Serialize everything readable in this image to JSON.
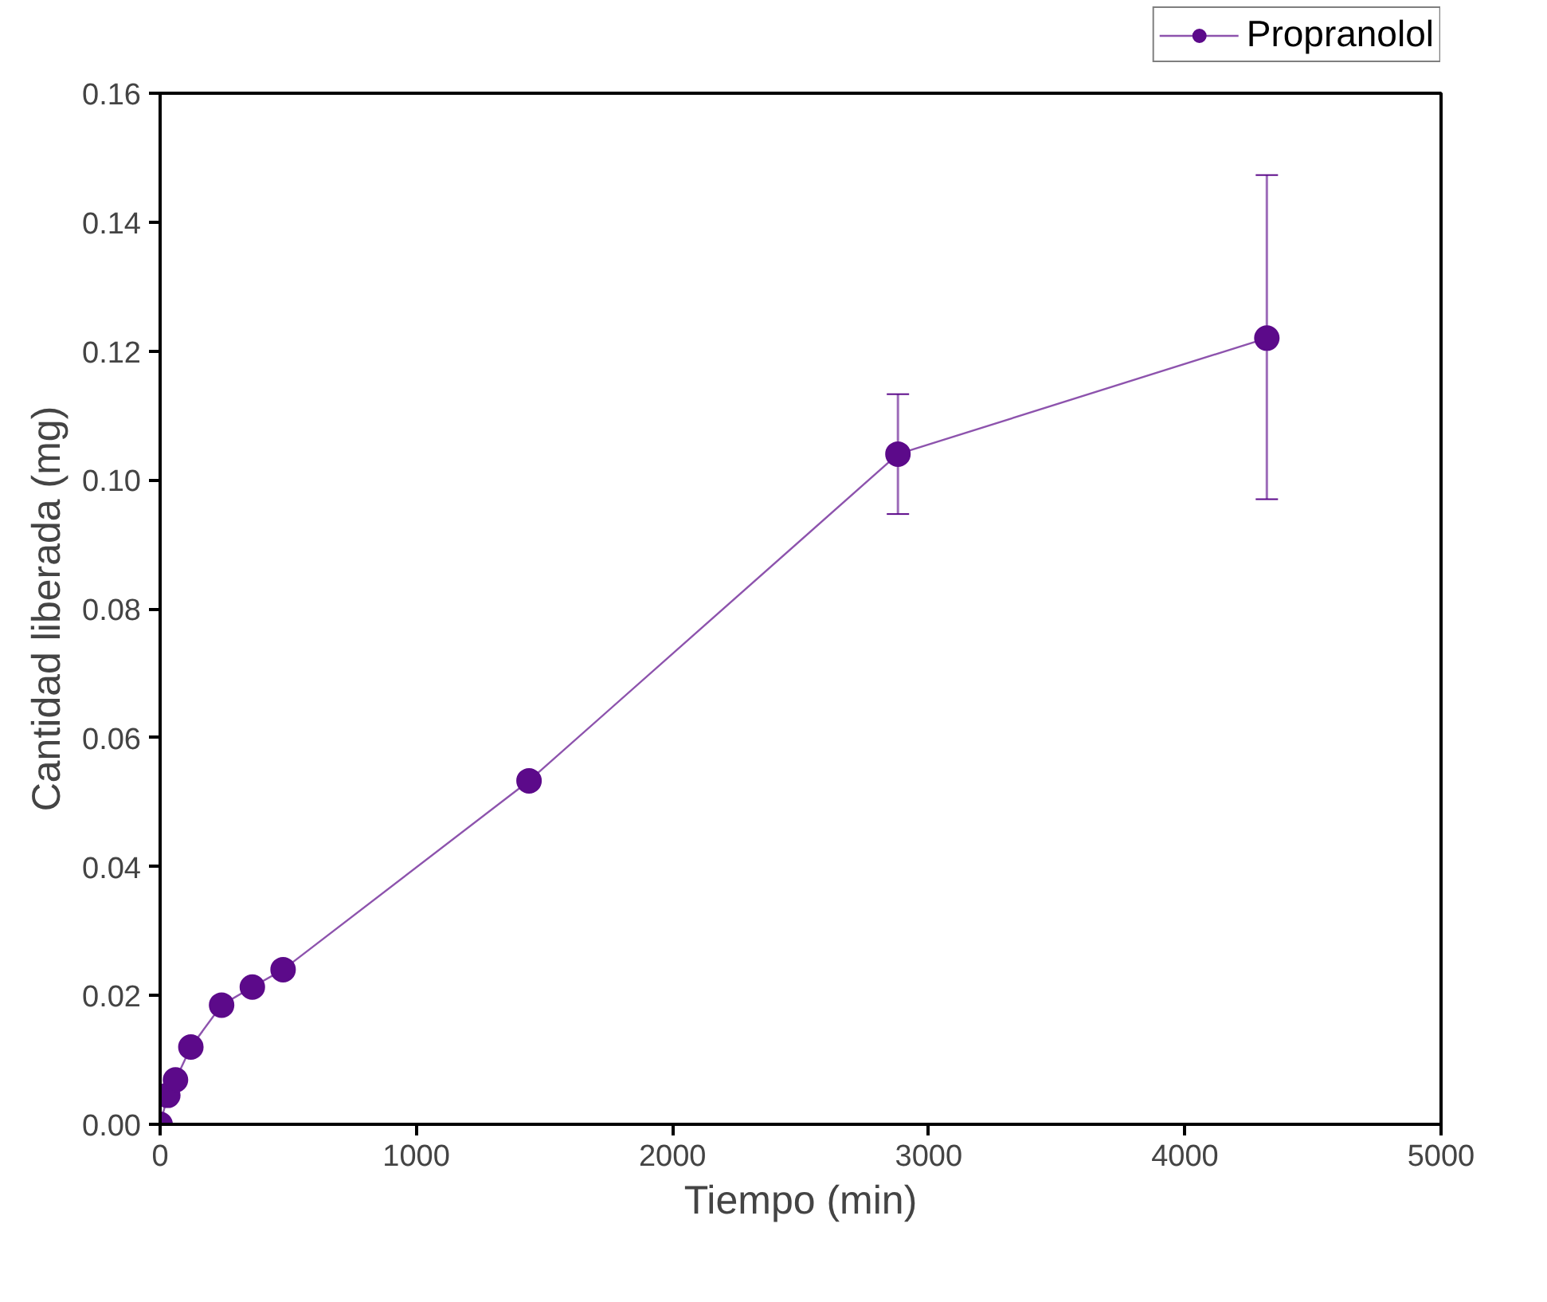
{
  "chart_data": {
    "type": "line",
    "xlabel": "Tiempo (min)",
    "ylabel": "Cantidad liberada (mg)",
    "x": [
      0,
      30,
      60,
      120,
      240,
      360,
      480,
      1440,
      2880,
      4320
    ],
    "series": [
      {
        "name": "Propranolol",
        "color": "#5c0a8a",
        "values": [
          0.0,
          0.0045,
          0.0069,
          0.012,
          0.0185,
          0.0213,
          0.024,
          0.0533,
          0.104,
          0.122
        ],
        "errors": [
          null,
          null,
          null,
          null,
          null,
          null,
          null,
          null,
          [
            0.0947,
            0.1133
          ],
          [
            0.097,
            0.1473
          ]
        ]
      }
    ],
    "xlim": [
      0,
      5000
    ],
    "ylim": [
      0,
      0.16
    ],
    "xticks": [
      0,
      1000,
      2000,
      3000,
      4000,
      5000
    ],
    "yticks": [
      {
        "value": 0,
        "label": "0.00"
      },
      {
        "value": 0.02,
        "label": "0.02"
      },
      {
        "value": 0.04,
        "label": "0.04"
      },
      {
        "value": 0.06,
        "label": "0.06"
      },
      {
        "value": 0.08,
        "label": "0.08"
      },
      {
        "value": 0.1,
        "label": "0.10"
      },
      {
        "value": 0.12,
        "label": "0.12"
      },
      {
        "value": 0.14,
        "label": "0.14"
      },
      {
        "value": 0.16,
        "label": "0.16"
      }
    ],
    "marker": "circle",
    "grid": false,
    "legend": "top right"
  }
}
